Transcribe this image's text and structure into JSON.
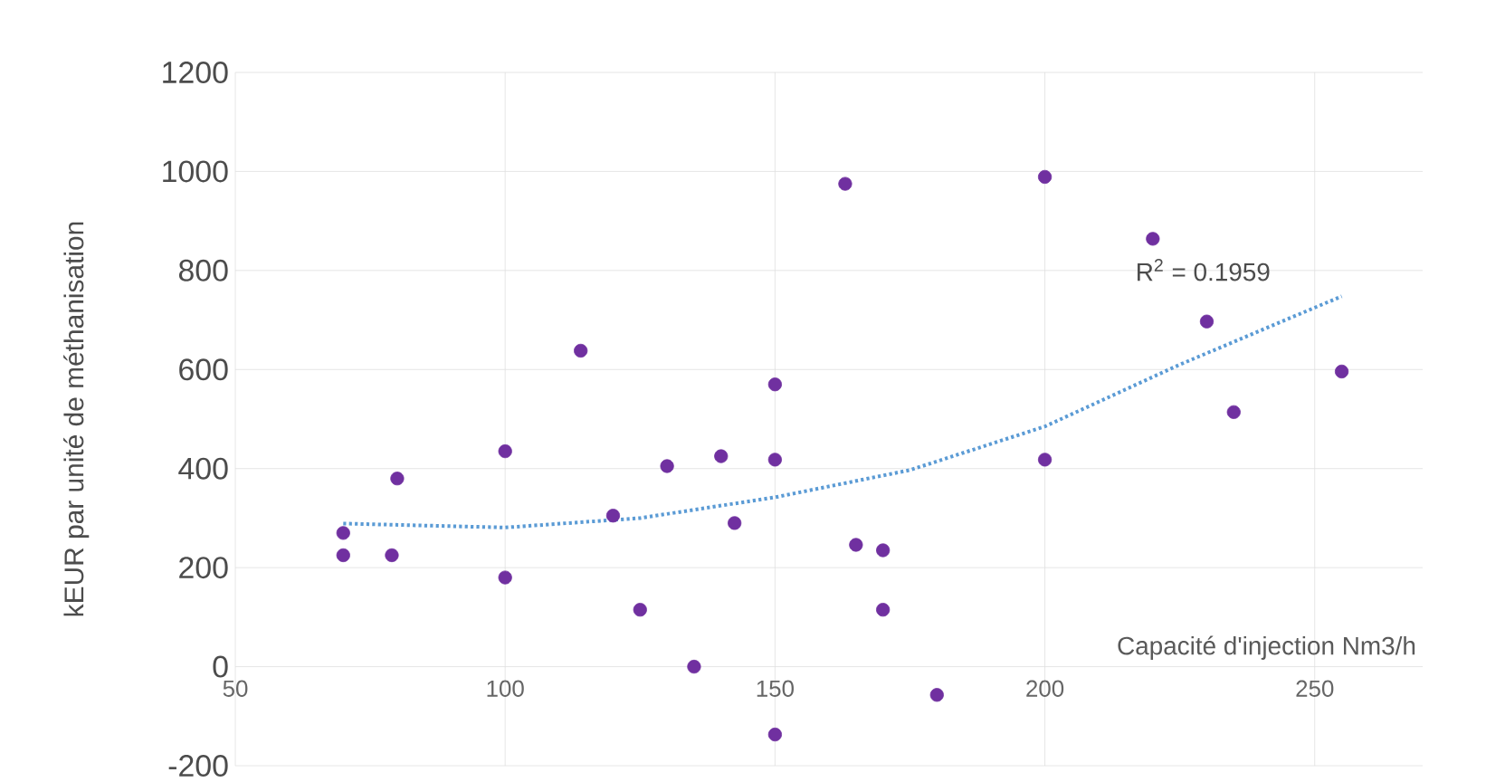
{
  "chart_data": {
    "type": "scatter",
    "xlabel": "Capacité d'injection Nm3/h",
    "ylabel": "kEUR par unité de méthanisation",
    "xlim": [
      50,
      270
    ],
    "xticks": [
      50,
      100,
      150,
      200,
      250
    ],
    "ylim": [
      -200,
      1200
    ],
    "yticks": [
      -200,
      0,
      200,
      400,
      600,
      800,
      1000,
      1200
    ],
    "grid": true,
    "series": [
      {
        "color": "#7030a0",
        "marker": "circle",
        "x": [
          70,
          70,
          80,
          79,
          100,
          100,
          114,
          120,
          125,
          130,
          135,
          140,
          142.5,
          150,
          150,
          150,
          163,
          165,
          170,
          170,
          180,
          200,
          200,
          220,
          230,
          235,
          255
        ],
        "values": [
          270,
          225,
          380,
          225,
          435,
          180,
          638,
          305,
          115,
          405,
          0,
          425,
          290,
          570,
          418,
          -137,
          975,
          246,
          235,
          115,
          -57,
          989,
          418,
          864,
          697,
          514,
          596
        ]
      },
      {
        "type": "line",
        "color": "#5b9bd5",
        "line_style": "dotted",
        "marker": "none",
        "x": [
          70,
          100,
          125,
          150,
          175,
          200,
          225,
          255
        ],
        "values": [
          289,
          281,
          300,
          342,
          397,
          485,
          610,
          748
        ]
      }
    ],
    "annotations": [
      "R$^{2}$ = 0.1959"
    ]
  }
}
